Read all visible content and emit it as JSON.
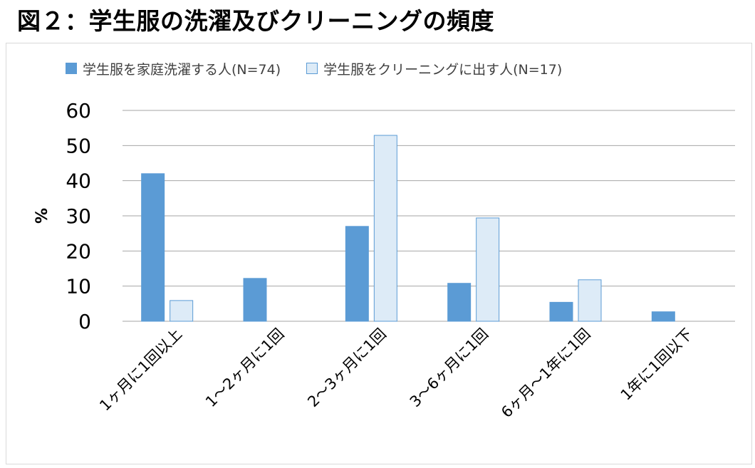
{
  "figure": {
    "title": "図２：学生服の洗濯及びクリーニングの頻度"
  },
  "chart_data": {
    "type": "bar",
    "title": "",
    "xlabel": "",
    "ylabel": "%",
    "ylim": [
      0,
      60
    ],
    "yticks": [
      0,
      10,
      20,
      30,
      40,
      50,
      60
    ],
    "grid": true,
    "legend_position": "top",
    "categories": [
      "1ヶ月に1回以上",
      "1～2ヶ月に1回",
      "2～3ヶ月に1回",
      "3～6ヶ月に1回",
      "6ヶ月～1年に1回",
      "1年に1回以下"
    ],
    "series": [
      {
        "name": "学生服を家庭洗濯する人(N=74)",
        "values": [
          42,
          12.2,
          27,
          10.8,
          5.4,
          2.7
        ],
        "color": "#5b9bd5",
        "border": "#5b9bd5"
      },
      {
        "name": "学生服をクリーニングに出す人(N=17)",
        "values": [
          5.9,
          0,
          52.9,
          29.4,
          11.8,
          0
        ],
        "color": "#ddebf7",
        "border": "#5b9bd5"
      }
    ]
  }
}
